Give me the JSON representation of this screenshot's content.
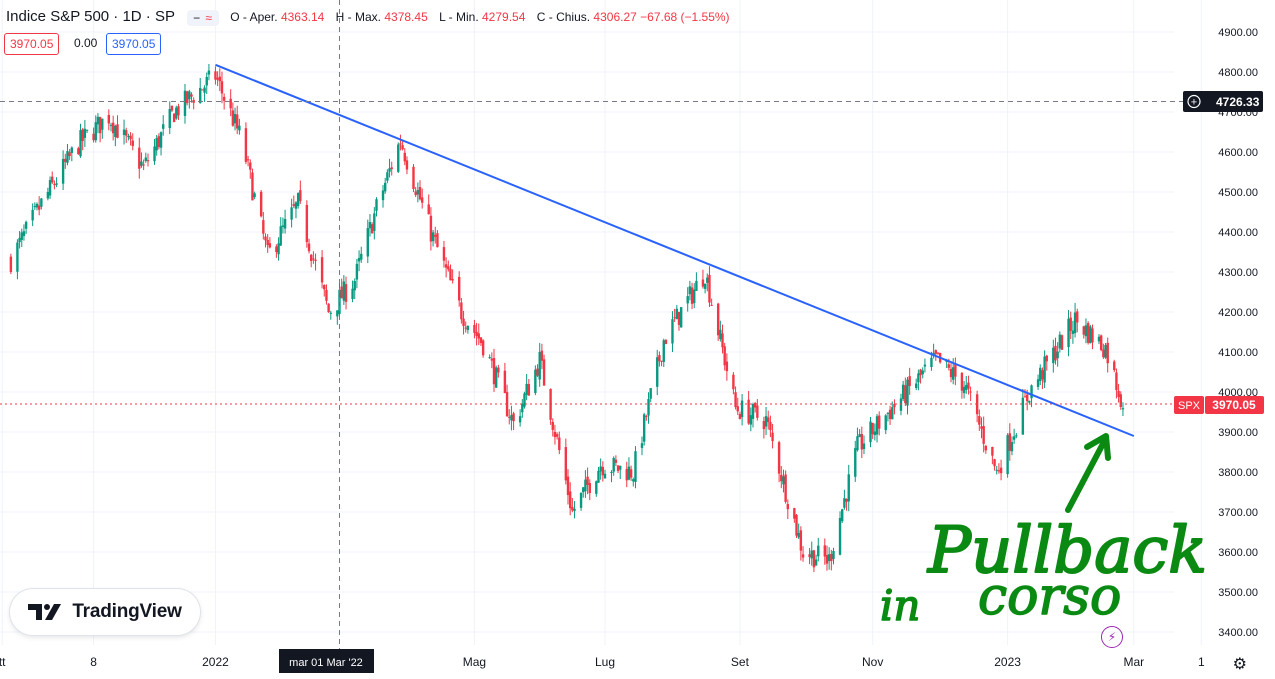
{
  "legend": {
    "symbol": "Indice S&P 500 · 1D · SP",
    "open_label": "O - Aper.",
    "open": "4363.14",
    "high_label": "H - Max.",
    "high": "4378.45",
    "low_label": "L - Min.",
    "low": "4279.54",
    "close_label": "C - Chius.",
    "close": "4306.27",
    "change": "−67.68 (−1.55%)",
    "bid": "3970.05",
    "spread": "0.00",
    "ask": "3970.05"
  },
  "crosshair": {
    "price_label": "4726.33",
    "date_label": "mar 01 Mar '22",
    "price": 4726.33
  },
  "last_price": {
    "symbol_tag": "SPX",
    "value": "3970.05",
    "price": 3970.05
  },
  "logo": {
    "text": "TradingView"
  },
  "annotation": {
    "line1": "Pullback",
    "line2a": "in",
    "line2b": "corso",
    "color": "#0a8a12"
  },
  "colors": {
    "up": "#089981",
    "down": "#f23645",
    "trendline": "#2962ff",
    "bid": "#f23645",
    "ask": "#2962ff"
  },
  "chart_data": {
    "type": "candlestick",
    "title": "Indice S&P 500 · 1D · SP",
    "x_ticks": [
      "tt",
      "8",
      "2022",
      "Mag",
      "Lug",
      "Set",
      "Nov",
      "2023",
      "Mar",
      "1"
    ],
    "y_ticks": [
      "3400.00",
      "3500.00",
      "3600.00",
      "3700.00",
      "3800.00",
      "3900.00",
      "4000.00",
      "4100.00",
      "4200.00",
      "4300.00",
      "4400.00",
      "4500.00",
      "4600.00",
      "4700.00",
      "4800.00",
      "4900.00"
    ],
    "ylim": [
      3400,
      4900
    ],
    "grid": true,
    "trendline": {
      "from": [
        "2022-01-03",
        4818
      ],
      "to": [
        "2023-03-01",
        3890
      ]
    },
    "series": [
      {
        "x": [
          "2021-10-01",
          "2021-10-15",
          "2021-11-01",
          "2021-11-15",
          "2021-12-01",
          "2021-12-15",
          "2022-01-03",
          "2022-01-15",
          "2022-01-27",
          "2022-02-10",
          "2022-02-24",
          "2022-03-08",
          "2022-03-18",
          "2022-03-29",
          "2022-04-12",
          "2022-04-26",
          "2022-05-06",
          "2022-05-20",
          "2022-06-01",
          "2022-06-16",
          "2022-06-29",
          "2022-07-14",
          "2022-07-28",
          "2022-08-16",
          "2022-08-30",
          "2022-09-13",
          "2022-09-30",
          "2022-10-12",
          "2022-10-25",
          "2022-11-10",
          "2022-11-30",
          "2022-12-13",
          "2022-12-28",
          "2023-01-12",
          "2023-02-02",
          "2023-02-16",
          "2023-02-24"
        ],
        "values": [
          4330,
          4470,
          4620,
          4690,
          4560,
          4700,
          4790,
          4630,
          4340,
          4470,
          4200,
          4280,
          4460,
          4630,
          4400,
          4200,
          4120,
          3920,
          4080,
          3700,
          3820,
          3800,
          4130,
          4300,
          3960,
          3930,
          3600,
          3580,
          3860,
          3960,
          4080,
          4020,
          3800,
          4000,
          4180,
          4110,
          3970
        ]
      }
    ]
  }
}
